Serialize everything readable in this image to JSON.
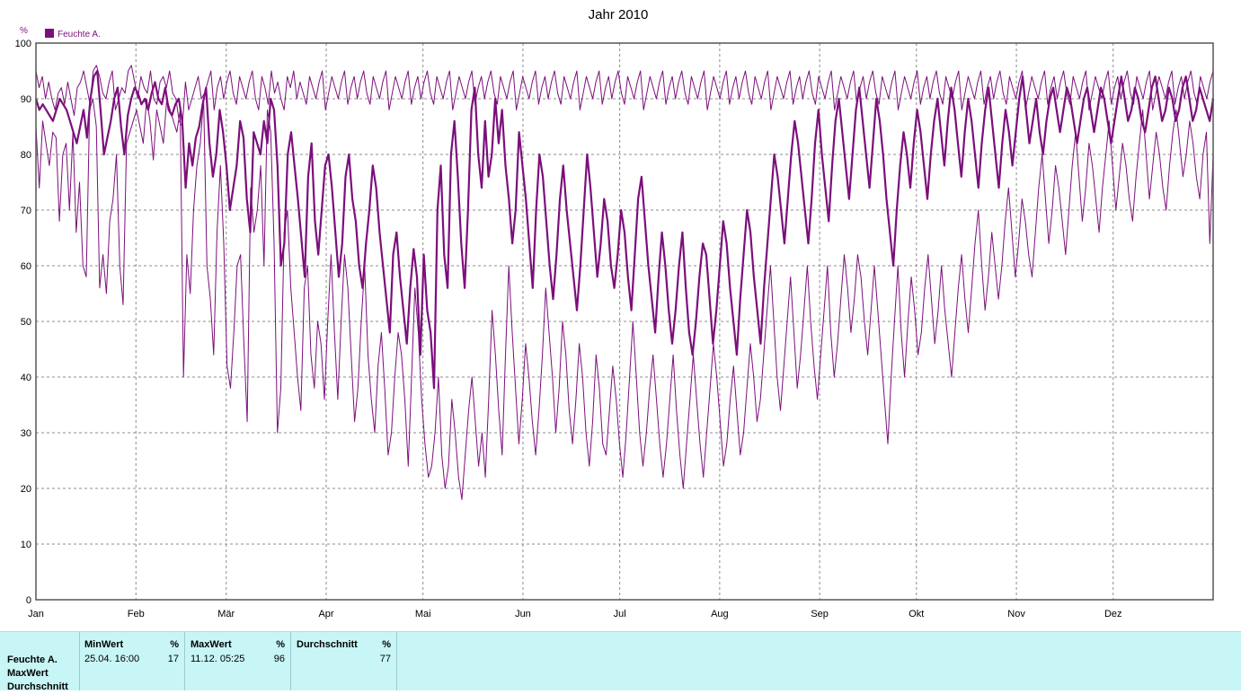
{
  "chart_data": {
    "type": "line",
    "title": "Jahr 2010",
    "yunit": "%",
    "ylim": [
      0,
      100
    ],
    "yticks": [
      0,
      10,
      20,
      30,
      40,
      50,
      60,
      70,
      80,
      90,
      100
    ],
    "xlim_days": [
      0,
      365
    ],
    "months": [
      "Jan",
      "Feb",
      "Mär",
      "Apr",
      "Mai",
      "Jun",
      "Jul",
      "Aug",
      "Sep",
      "Okt",
      "Nov",
      "Dez"
    ],
    "legend": {
      "label": "Feuchte A.",
      "position": "top-left"
    },
    "grid": true,
    "color": "#7b0f7b",
    "series": [
      {
        "name": "Max",
        "width": 1,
        "values": [
          95,
          92,
          94,
          90,
          93,
          90,
          88,
          91,
          92,
          89,
          93,
          90,
          87,
          92,
          93,
          95,
          92,
          89,
          95,
          96,
          94,
          91,
          90,
          93,
          95,
          88,
          90,
          92,
          91,
          95,
          96,
          93,
          90,
          94,
          92,
          91,
          95,
          90,
          89,
          93,
          94,
          92,
          95,
          91,
          90,
          86,
          85,
          93,
          88,
          90,
          92,
          94,
          90,
          91,
          93,
          95,
          88,
          92,
          94,
          90,
          93,
          95,
          91,
          89,
          94,
          92,
          90,
          93,
          95,
          90,
          88,
          94,
          92,
          89,
          95,
          91,
          93,
          90,
          88,
          94,
          92,
          95,
          90,
          93,
          91,
          89,
          94,
          92,
          90,
          93,
          95,
          88,
          91,
          94,
          92,
          90,
          93,
          95,
          89,
          92,
          94,
          90,
          93,
          95,
          91,
          89,
          94,
          92,
          90,
          93,
          95,
          88,
          91,
          94,
          92,
          90,
          93,
          95,
          89,
          92,
          94,
          90,
          93,
          95,
          91,
          89,
          94,
          92,
          90,
          93,
          95,
          88,
          91,
          94,
          92,
          90,
          93,
          95,
          89,
          92,
          94,
          90,
          93,
          95,
          91,
          89,
          94,
          92,
          90,
          93,
          95,
          88,
          91,
          94,
          92,
          90,
          93,
          95,
          89,
          92,
          94,
          90,
          93,
          95,
          91,
          89,
          94,
          92,
          90,
          93,
          95,
          88,
          91,
          94,
          92,
          90,
          93,
          95,
          89,
          92,
          94,
          90,
          93,
          95,
          91,
          89,
          94,
          92,
          90,
          93,
          95,
          88,
          91,
          94,
          92,
          90,
          93,
          95,
          89,
          92,
          94,
          90,
          93,
          95,
          91,
          89,
          94,
          92,
          90,
          93,
          95,
          88,
          91,
          94,
          92,
          90,
          93,
          95,
          89,
          92,
          94,
          90,
          93,
          95,
          91,
          89,
          94,
          92,
          90,
          93,
          95,
          88,
          91,
          94,
          92,
          90,
          93,
          95,
          89,
          92,
          94,
          90,
          93,
          95,
          91,
          89,
          94,
          92,
          90,
          93,
          95,
          88,
          91,
          94,
          92,
          90,
          93,
          95,
          89,
          92,
          94,
          90,
          93,
          95,
          91,
          89,
          94,
          92,
          90,
          93,
          95,
          88,
          91,
          94,
          92,
          90,
          93,
          95,
          89,
          92,
          94,
          90,
          93,
          95,
          91,
          89,
          94,
          92,
          90,
          93,
          95,
          88,
          91,
          94,
          92,
          90,
          93,
          95,
          89,
          92,
          94,
          90,
          93,
          95,
          91,
          89,
          94,
          92,
          90,
          93,
          95,
          88,
          91,
          94,
          92,
          90,
          93,
          95,
          89,
          92,
          94,
          90,
          93,
          95,
          91,
          89,
          94,
          92,
          90,
          93,
          95,
          88,
          91,
          94,
          92,
          90,
          93,
          95,
          89,
          92,
          94,
          90,
          93,
          95,
          91,
          89,
          94,
          92,
          90,
          93,
          95,
          88,
          91,
          94,
          92,
          90,
          93,
          95,
          89,
          92,
          94,
          90,
          93,
          95,
          91,
          89,
          94,
          92,
          90,
          93,
          95
        ]
      },
      {
        "name": "Durchschnitt",
        "width": 2.2,
        "values": [
          90,
          88,
          89,
          88,
          87,
          86,
          88,
          90,
          89,
          88,
          86,
          84,
          82,
          85,
          88,
          83,
          90,
          94,
          95,
          88,
          80,
          83,
          86,
          90,
          92,
          85,
          80,
          87,
          90,
          92,
          91,
          89,
          90,
          88,
          91,
          93,
          90,
          89,
          92,
          88,
          87,
          89,
          90,
          86,
          74,
          82,
          78,
          83,
          85,
          89,
          92,
          82,
          76,
          80,
          88,
          84,
          78,
          70,
          74,
          78,
          86,
          83,
          72,
          66,
          84,
          82,
          80,
          86,
          82,
          90,
          88,
          78,
          60,
          64,
          80,
          84,
          78,
          72,
          65,
          58,
          76,
          82,
          68,
          62,
          70,
          78,
          80,
          74,
          66,
          58,
          64,
          76,
          80,
          72,
          68,
          60,
          56,
          64,
          70,
          78,
          74,
          66,
          60,
          54,
          48,
          62,
          66,
          58,
          52,
          46,
          56,
          63,
          58,
          44,
          62,
          52,
          48,
          38,
          70,
          78,
          62,
          56,
          80,
          86,
          76,
          64,
          56,
          70,
          88,
          92,
          80,
          74,
          86,
          76,
          80,
          90,
          82,
          88,
          78,
          72,
          64,
          70,
          84,
          78,
          72,
          64,
          56,
          70,
          80,
          76,
          68,
          60,
          54,
          62,
          72,
          78,
          70,
          64,
          58,
          52,
          60,
          70,
          80,
          74,
          66,
          58,
          64,
          72,
          68,
          60,
          56,
          62,
          70,
          66,
          58,
          52,
          62,
          72,
          76,
          68,
          60,
          54,
          48,
          58,
          66,
          60,
          52,
          46,
          52,
          60,
          66,
          56,
          48,
          44,
          50,
          58,
          64,
          62,
          54,
          46,
          52,
          60,
          68,
          64,
          56,
          50,
          44,
          54,
          62,
          70,
          66,
          58,
          52,
          46,
          56,
          64,
          72,
          80,
          76,
          70,
          64,
          72,
          80,
          86,
          82,
          76,
          70,
          64,
          72,
          82,
          88,
          80,
          74,
          68,
          78,
          86,
          90,
          84,
          78,
          72,
          80,
          88,
          92,
          86,
          80,
          74,
          82,
          90,
          86,
          80,
          72,
          66,
          60,
          70,
          78,
          84,
          80,
          74,
          82,
          88,
          84,
          78,
          72,
          80,
          86,
          90,
          84,
          78,
          86,
          92,
          88,
          82,
          76,
          84,
          90,
          86,
          80,
          74,
          82,
          88,
          92,
          86,
          80,
          74,
          82,
          88,
          84,
          78,
          84,
          90,
          94,
          88,
          82,
          86,
          90,
          84,
          80,
          86,
          90,
          92,
          88,
          84,
          88,
          92,
          90,
          86,
          82,
          86,
          90,
          92,
          88,
          84,
          88,
          92,
          90,
          86,
          82,
          86,
          90,
          94,
          90,
          86,
          88,
          92,
          90,
          86,
          84,
          88,
          92,
          94,
          90,
          86,
          88,
          92,
          90,
          86,
          88,
          92,
          94,
          90,
          86,
          88,
          92,
          90,
          88,
          86,
          90
        ]
      },
      {
        "name": "Min",
        "width": 1,
        "values": [
          85,
          74,
          86,
          82,
          78,
          84,
          83,
          68,
          80,
          82,
          70,
          84,
          66,
          75,
          60,
          58,
          88,
          90,
          85,
          56,
          62,
          55,
          68,
          72,
          80,
          60,
          53,
          82,
          84,
          86,
          88,
          85,
          82,
          90,
          86,
          79,
          88,
          85,
          82,
          90,
          88,
          86,
          84,
          88,
          40,
          62,
          55,
          70,
          78,
          82,
          90,
          60,
          54,
          44,
          66,
          78,
          64,
          42,
          38,
          48,
          60,
          62,
          46,
          32,
          74,
          66,
          70,
          78,
          60,
          88,
          84,
          64,
          30,
          38,
          66,
          70,
          56,
          48,
          40,
          34,
          56,
          60,
          44,
          38,
          50,
          46,
          36,
          50,
          62,
          48,
          36,
          50,
          62,
          56,
          44,
          32,
          38,
          50,
          60,
          44,
          36,
          30,
          42,
          48,
          38,
          26,
          30,
          40,
          48,
          44,
          36,
          24,
          40,
          56,
          48,
          36,
          28,
          22,
          24,
          30,
          40,
          26,
          20,
          24,
          36,
          30,
          22,
          18,
          26,
          34,
          40,
          32,
          24,
          30,
          22,
          36,
          52,
          44,
          34,
          26,
          44,
          60,
          48,
          38,
          28,
          36,
          46,
          40,
          32,
          26,
          34,
          44,
          56,
          48,
          40,
          30,
          38,
          50,
          44,
          34,
          28,
          36,
          46,
          40,
          30,
          24,
          32,
          44,
          38,
          28,
          26,
          34,
          42,
          36,
          28,
          22,
          30,
          40,
          50,
          40,
          30,
          24,
          30,
          38,
          44,
          36,
          28,
          22,
          28,
          36,
          44,
          34,
          26,
          20,
          28,
          36,
          44,
          36,
          28,
          22,
          30,
          38,
          46,
          40,
          32,
          24,
          28,
          36,
          42,
          34,
          26,
          30,
          38,
          46,
          40,
          32,
          36,
          44,
          52,
          60,
          50,
          40,
          34,
          42,
          50,
          58,
          48,
          38,
          44,
          52,
          60,
          50,
          42,
          36,
          44,
          52,
          60,
          48,
          40,
          46,
          54,
          62,
          56,
          48,
          54,
          62,
          58,
          50,
          44,
          52,
          60,
          52,
          44,
          36,
          28,
          40,
          50,
          60,
          48,
          40,
          50,
          58,
          52,
          44,
          48,
          56,
          62,
          54,
          46,
          52,
          60,
          52,
          46,
          40,
          48,
          56,
          62,
          54,
          48,
          56,
          64,
          70,
          60,
          52,
          58,
          66,
          60,
          54,
          60,
          68,
          74,
          66,
          58,
          64,
          72,
          68,
          62,
          58,
          66,
          74,
          80,
          72,
          64,
          70,
          78,
          74,
          68,
          62,
          70,
          78,
          84,
          76,
          68,
          74,
          82,
          78,
          72,
          66,
          74,
          80,
          86,
          78,
          70,
          76,
          82,
          78,
          72,
          68,
          76,
          82,
          88,
          80,
          72,
          78,
          84,
          80,
          74,
          70,
          78,
          84,
          88,
          82,
          76,
          80,
          86,
          82,
          76,
          72,
          80,
          84,
          64,
          80
        ]
      }
    ]
  },
  "stats": {
    "row_labels": [
      "Feuchte A.",
      "MaxWert",
      "Durchschnitt"
    ],
    "columns": [
      {
        "header": "MinWert",
        "unit": "%",
        "timestamp": "25.04.  16:00",
        "value": "17"
      },
      {
        "header": "MaxWert",
        "unit": "%",
        "timestamp": "11.12.  05:25",
        "value": "96"
      },
      {
        "header": "Durchschnitt",
        "unit": "%",
        "timestamp": "",
        "value": "77"
      }
    ]
  }
}
